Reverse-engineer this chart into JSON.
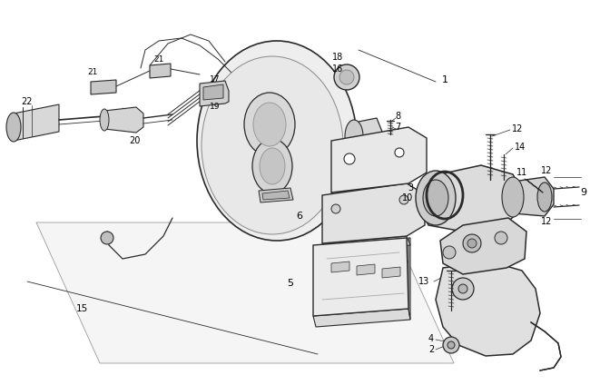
{
  "bg_color": "#ffffff",
  "line_color": "#2a2a2a",
  "fig_width": 6.5,
  "fig_height": 4.24,
  "dpi": 100
}
